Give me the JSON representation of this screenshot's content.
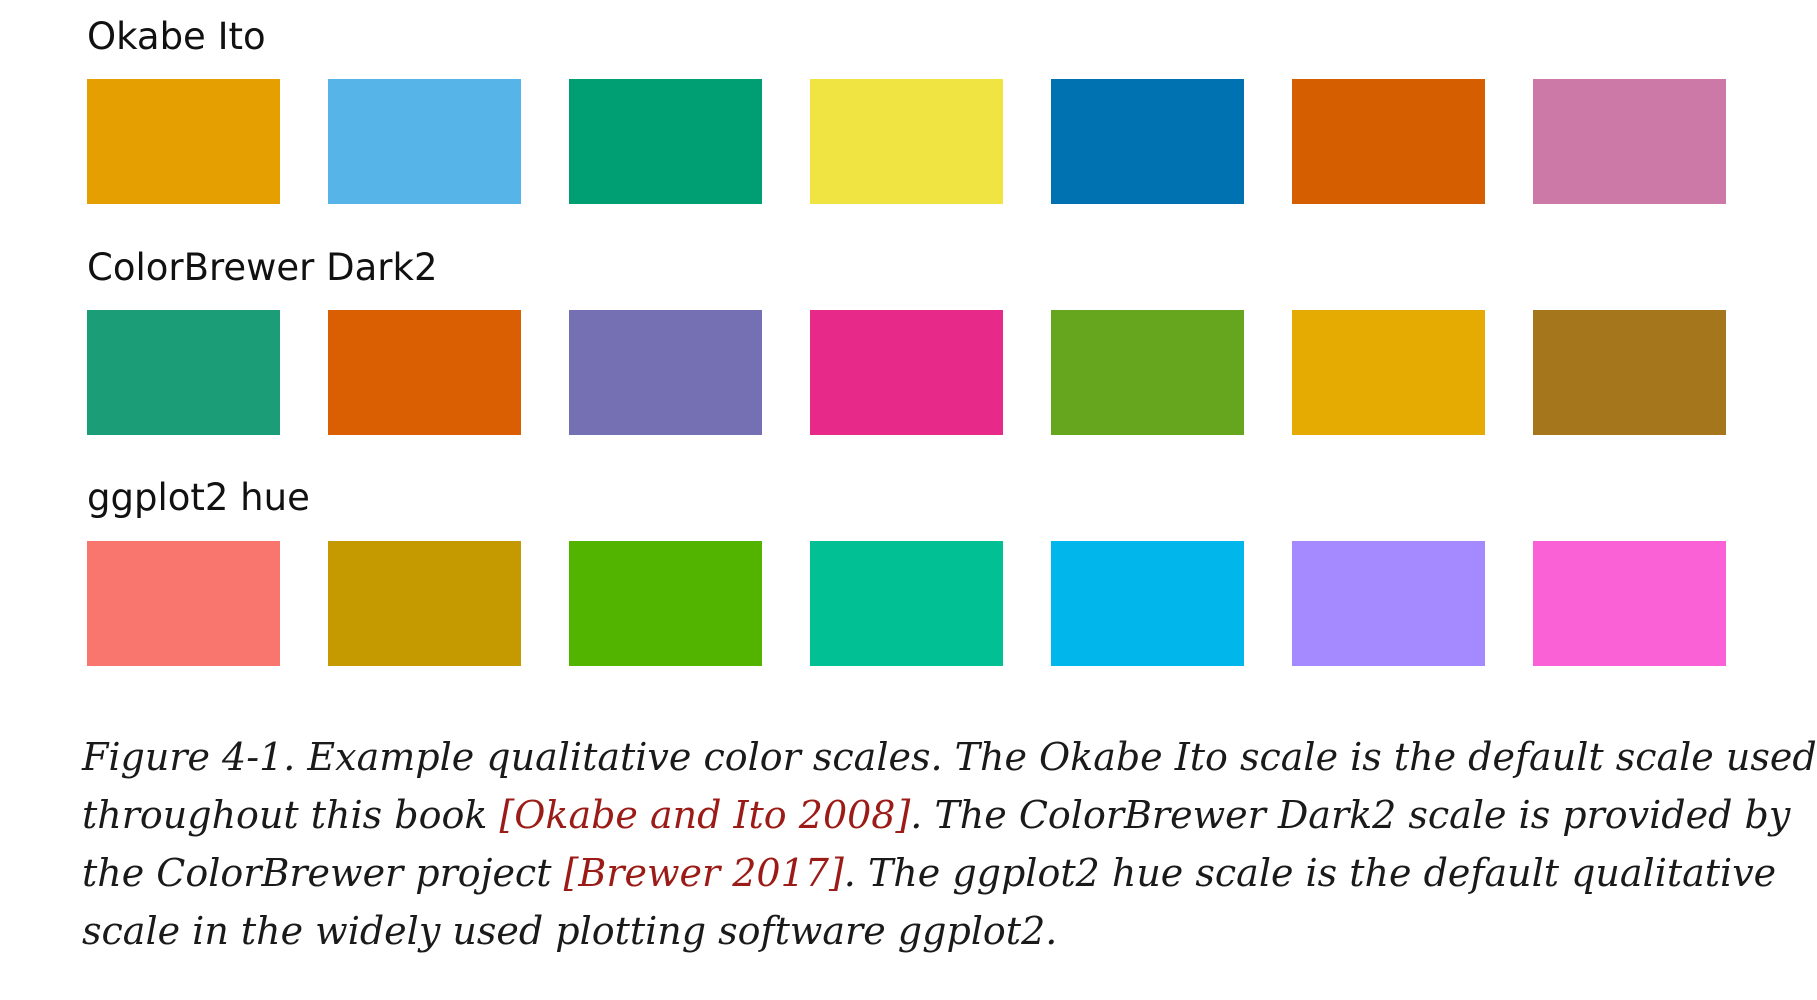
{
  "scales": [
    {
      "title": "Okabe Ito",
      "colors": [
        "#E69F00",
        "#56B4E9",
        "#009E73",
        "#F0E442",
        "#0072B2",
        "#D55E00",
        "#CC79A7"
      ]
    },
    {
      "title": "ColorBrewer Dark2",
      "colors": [
        "#1B9E77",
        "#D95F02",
        "#7570B3",
        "#E7298A",
        "#66A61E",
        "#E6AB02",
        "#A6761D"
      ]
    },
    {
      "title": "ggplot2 hue",
      "colors": [
        "#F8766D",
        "#C49A00",
        "#53B400",
        "#00C094",
        "#00B6EB",
        "#A58AFF",
        "#FB61D7"
      ]
    }
  ],
  "caption": {
    "line1": "Figure 4-1. Example qualitative color scales. The Okabe Ito scale is the default scale used",
    "line2_a": "throughout this book ",
    "line2_cite": "[Okabe and Ito 2008]",
    "line2_b": ". The ColorBrewer Dark2 scale is provided by",
    "line3_a": "the ColorBrewer project ",
    "line3_cite": "[Brewer 2017]",
    "line3_b": ". The ggplot2 hue scale is the default qualitative",
    "line4": "scale in the widely used plotting software ggplot2."
  }
}
